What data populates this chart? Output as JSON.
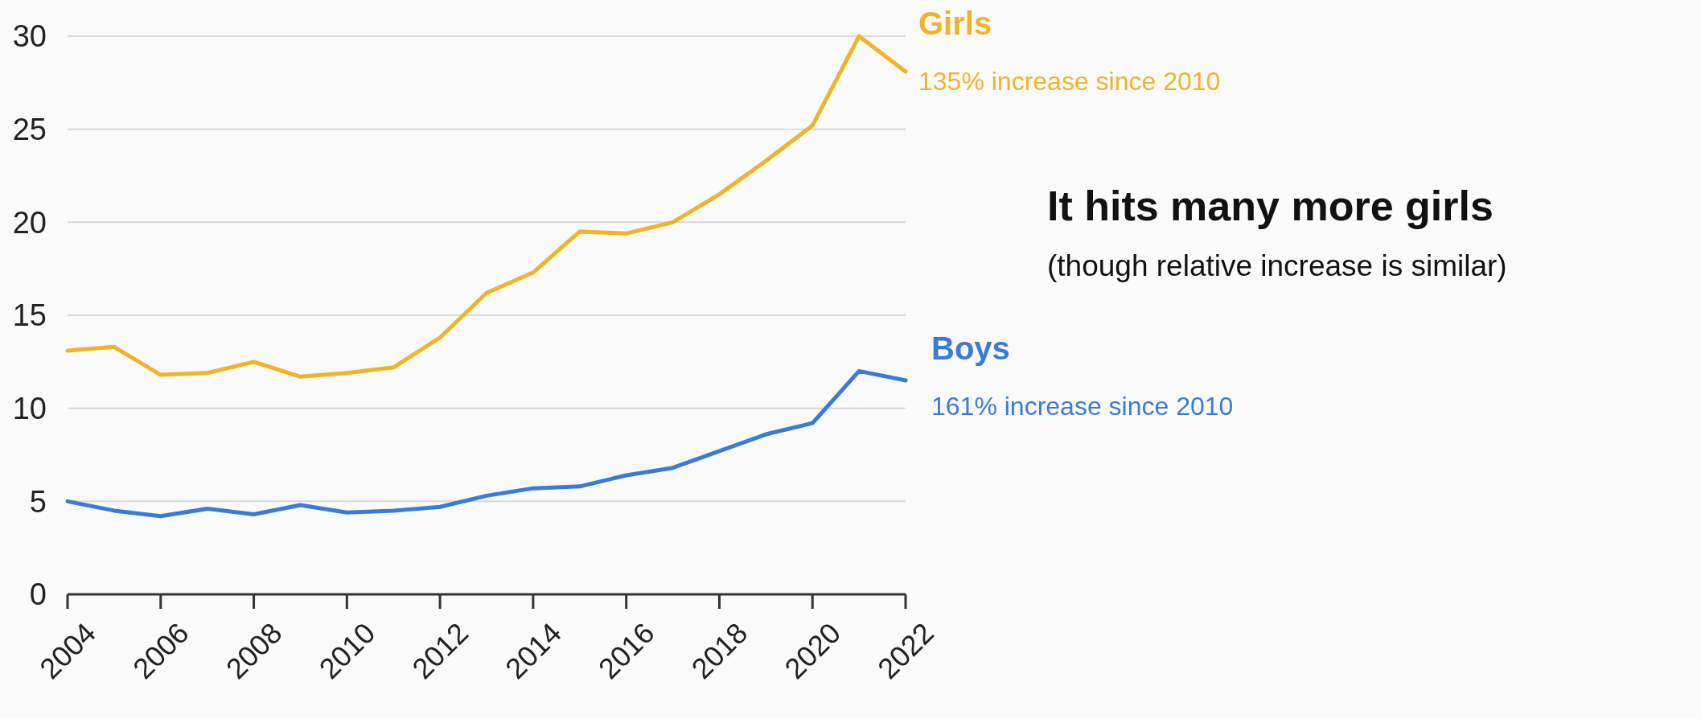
{
  "chart_data": {
    "type": "line",
    "title": "It hits many more girls",
    "subtitle": "(though relative increase is similar)",
    "x": [
      2004,
      2005,
      2006,
      2007,
      2008,
      2009,
      2010,
      2011,
      2012,
      2013,
      2014,
      2015,
      2016,
      2017,
      2018,
      2019,
      2020,
      2021,
      2022
    ],
    "series": [
      {
        "name": "Girls",
        "color": "#f0b429",
        "values": [
          13.1,
          13.3,
          11.8,
          11.9,
          12.5,
          11.7,
          11.9,
          12.2,
          13.8,
          16.2,
          17.3,
          19.5,
          19.4,
          20.0,
          21.5,
          23.3,
          25.2,
          30.0,
          28.1
        ]
      },
      {
        "name": "Boys",
        "color": "#3a7bd5",
        "values": [
          5.0,
          4.5,
          4.2,
          4.6,
          4.3,
          4.8,
          4.4,
          4.5,
          4.7,
          5.3,
          5.7,
          5.8,
          6.4,
          6.8,
          7.7,
          8.6,
          9.2,
          12.0,
          11.5
        ]
      }
    ],
    "annotations": [
      "135% increase since 2010",
      "161% increase since 2010"
    ],
    "xlim": [
      2004,
      2022
    ],
    "xticks": [
      2004,
      2006,
      2008,
      2010,
      2012,
      2014,
      2016,
      2018,
      2020,
      2022
    ],
    "ylim": [
      0,
      30
    ],
    "yticks": [
      0,
      5,
      10,
      15,
      20,
      25,
      30
    ],
    "grid": "y",
    "line_style": "solid",
    "marker": "none"
  }
}
